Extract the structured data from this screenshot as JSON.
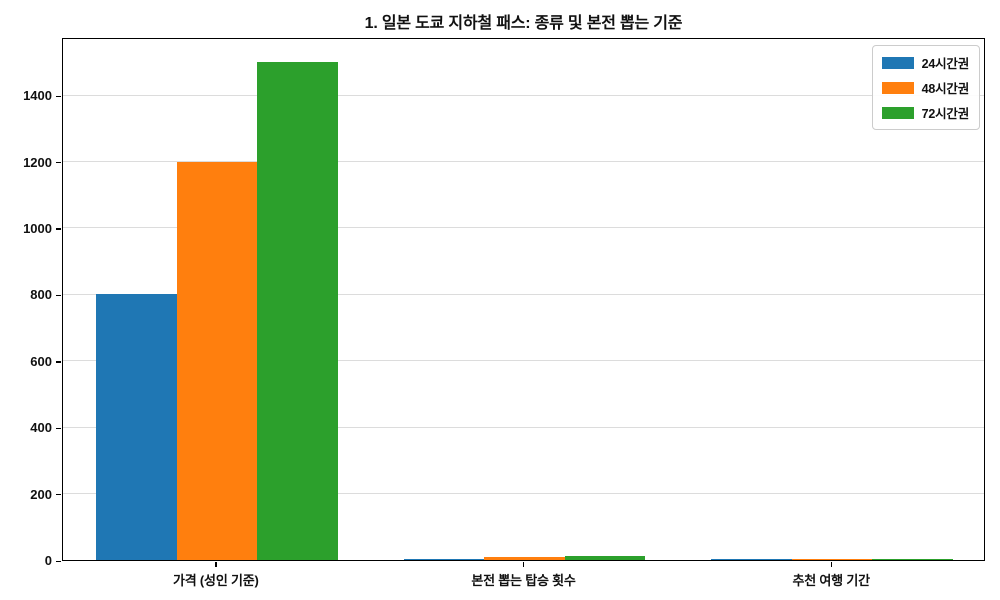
{
  "chart_data": {
    "type": "bar",
    "title": "1. 일본 도쿄 지하철 패스: 종류 및 본전 뽑는 기준",
    "categories": [
      "가격 (성인 기준)",
      "본전 뽑는 탑승 횟수",
      "추천 여행 기간"
    ],
    "series": [
      {
        "name": "24시간권",
        "color": "#1f77b4",
        "values": [
          800,
          4,
          1
        ]
      },
      {
        "name": "48시간권",
        "color": "#ff7f0e",
        "values": [
          1200,
          8,
          2
        ]
      },
      {
        "name": "72시간권",
        "color": "#2ca02c",
        "values": [
          1500,
          12,
          3
        ]
      }
    ],
    "xlabel": "",
    "ylabel": "",
    "ylim": [
      0,
      1575
    ],
    "yticks": [
      0,
      200,
      400,
      600,
      800,
      1000,
      1200,
      1400
    ],
    "grid": true,
    "legend_position": "upper right",
    "background": "#ffffff",
    "gridline_color": "#dcdcdc",
    "spine_color": "#000000"
  }
}
